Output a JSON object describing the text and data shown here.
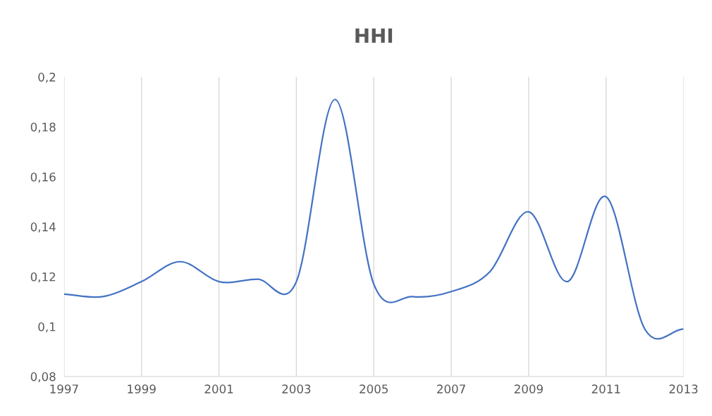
{
  "chart_data": {
    "type": "line",
    "title": "HHI",
    "x": [
      1997,
      1998,
      1999,
      2000,
      2001,
      2002,
      2003,
      2004,
      2005,
      2006,
      2007,
      2008,
      2009,
      2010,
      2011,
      2012,
      2013
    ],
    "series": [
      {
        "color": "#4472c4",
        "values": [
          0.113,
          0.112,
          0.118,
          0.126,
          0.118,
          0.119,
          0.118,
          0.191,
          0.117,
          0.112,
          0.114,
          0.122,
          0.146,
          0.118,
          0.152,
          0.099,
          0.099
        ]
      }
    ],
    "xlim": [
      1997,
      2013
    ],
    "xticks": [
      1997,
      1999,
      2001,
      2003,
      2005,
      2007,
      2009,
      2011,
      2013
    ],
    "ylim": [
      0.08,
      0.2
    ],
    "yticks": [
      {
        "value": 0.08,
        "label": "0,08"
      },
      {
        "value": 0.1,
        "label": "0,1"
      },
      {
        "value": 0.12,
        "label": "0,12"
      },
      {
        "value": 0.14,
        "label": "0,14"
      },
      {
        "value": 0.16,
        "label": "0,16"
      },
      {
        "value": 0.18,
        "label": "0,18"
      },
      {
        "value": 0.2,
        "label": "0,2"
      }
    ],
    "grid": "x",
    "legend": false,
    "marker": "none",
    "line_style": "solid"
  }
}
